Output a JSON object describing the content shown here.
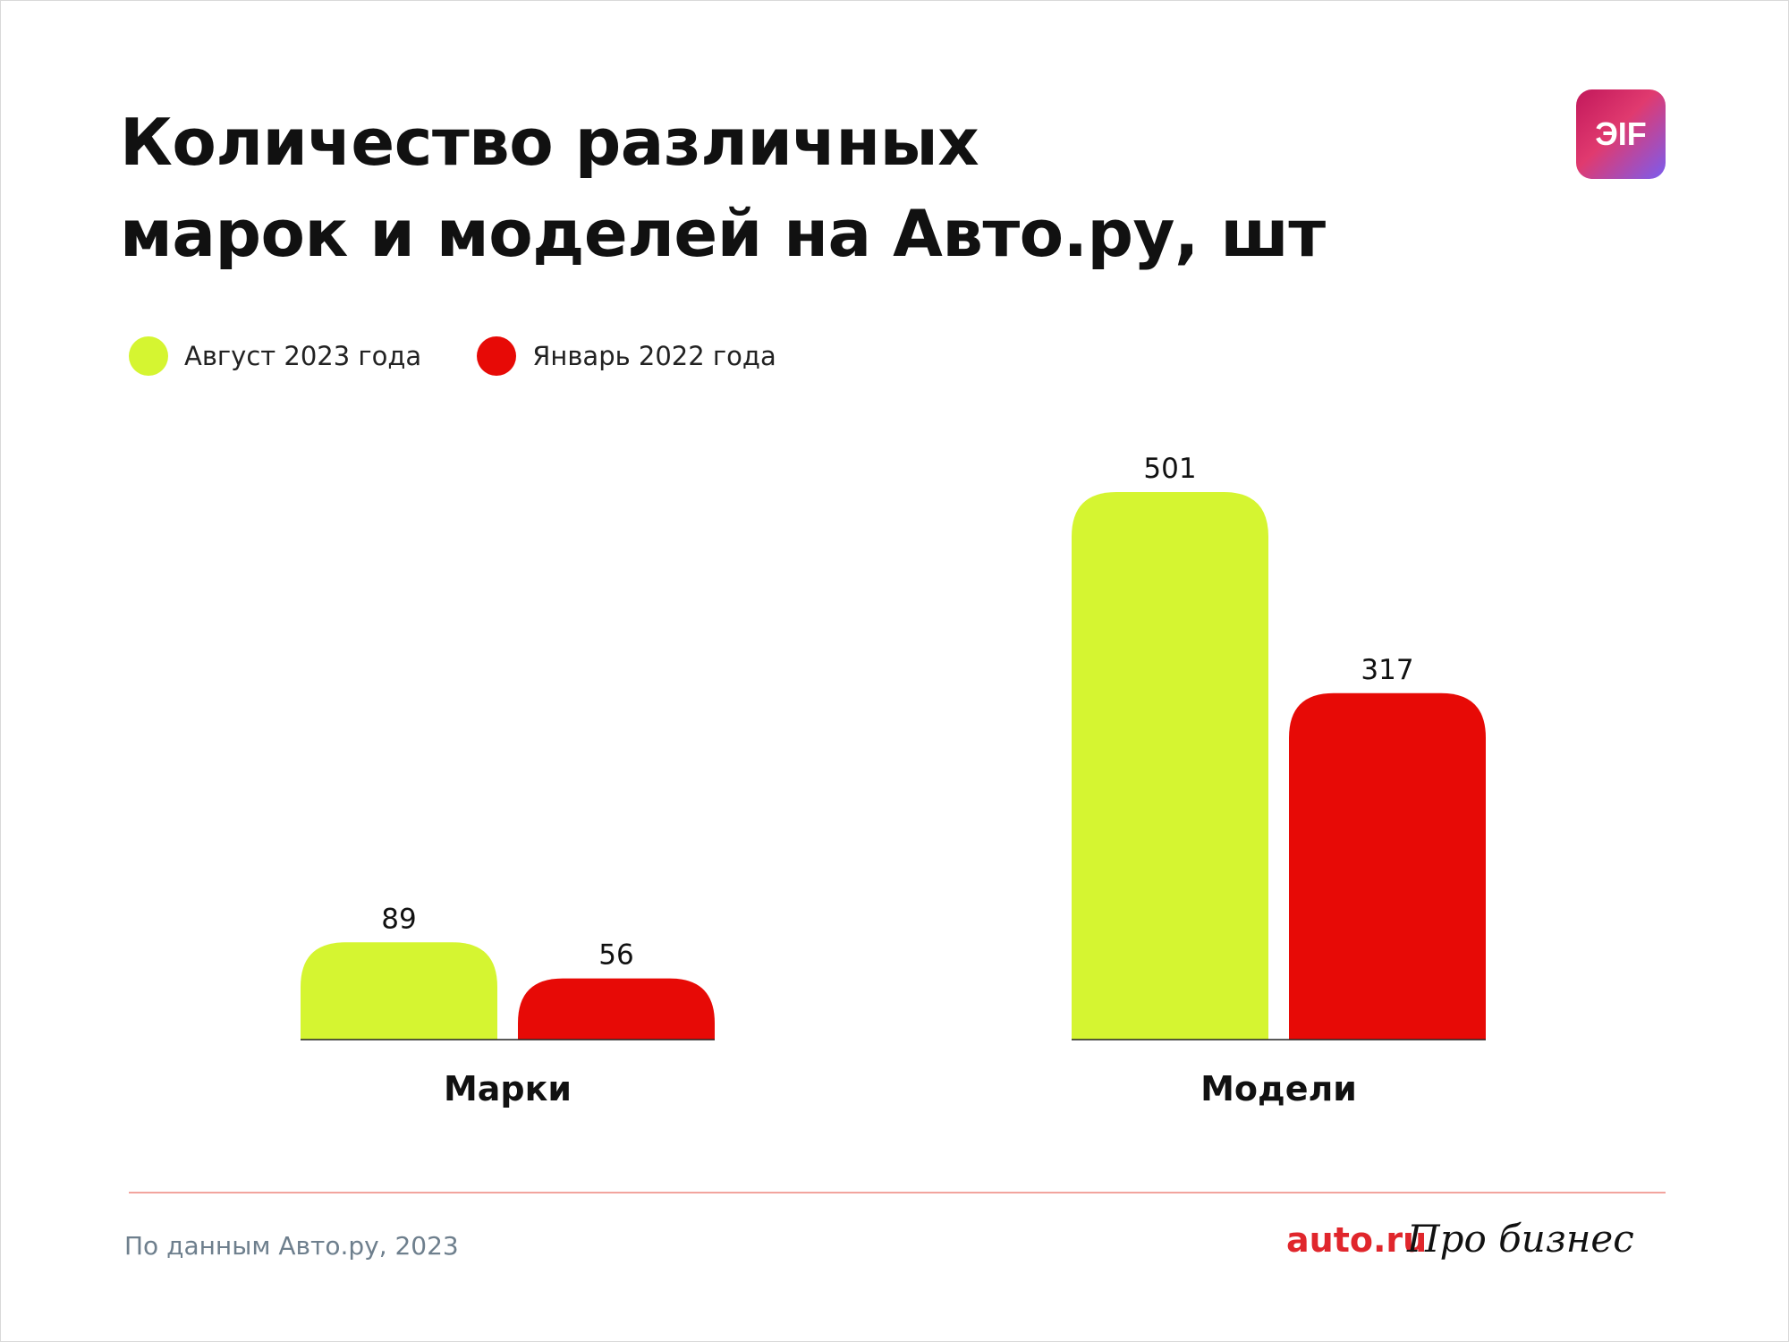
{
  "header": {
    "title_line1": "Количество различных",
    "title_line2": "марок и моделей на Авто.ру, шт",
    "logo_text": "ЭIF"
  },
  "colors": {
    "august_2023": "#d5f531",
    "january_2022": "#e70a06"
  },
  "legend": [
    {
      "label": "Август 2023 года",
      "color": "#d5f531"
    },
    {
      "label": "Январь 2022 года",
      "color": "#e70a06"
    }
  ],
  "chart_data": {
    "type": "bar",
    "title": "Количество различных марок и моделей на Авто.ру, шт",
    "categories": [
      "Марки",
      "Модели"
    ],
    "series": [
      {
        "name": "Август 2023 года",
        "values": [
          89,
          501
        ],
        "color": "#d5f531"
      },
      {
        "name": "Январь 2022 года",
        "values": [
          56,
          317
        ],
        "color": "#e70a06"
      }
    ],
    "ylim": [
      0,
      501
    ],
    "grid": false,
    "legend_position": "top-left"
  },
  "footer": {
    "source": "По данным Авто.ру, 2023",
    "brand_auto": "auto.ru",
    "brand_pro": "Про бизнес"
  }
}
